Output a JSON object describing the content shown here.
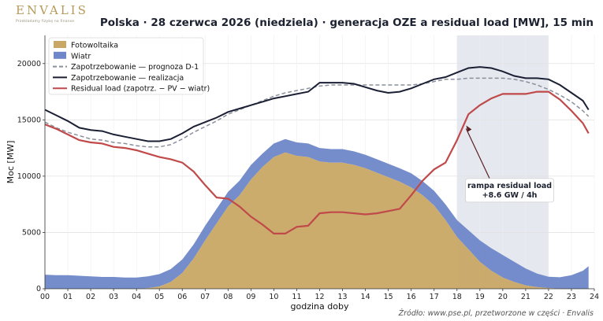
{
  "brand": {
    "name": "ENVALIS",
    "tagline": "Przekładamy fizykę na finanse"
  },
  "title": "Polska · 28 czerwca 2026 (niedziela) · generacja OZE a residual load [MW], 15 min",
  "source": "Źródło: www.pse.pl, przetworzone w części · Envalis",
  "chart_data": {
    "type": "area",
    "xlabel": "godzina doby",
    "ylabel": "Moc [MW]",
    "xlim": [
      0,
      24
    ],
    "ylim": [
      0,
      22500
    ],
    "x_ticks": [
      "00",
      "01",
      "02",
      "03",
      "04",
      "05",
      "06",
      "07",
      "08",
      "09",
      "10",
      "11",
      "12",
      "13",
      "14",
      "15",
      "16",
      "17",
      "18",
      "19",
      "20",
      "21",
      "22",
      "23",
      "24"
    ],
    "y_ticks": [
      0,
      5000,
      10000,
      15000,
      20000
    ],
    "y_tick_labels": [
      "0",
      "5000",
      "10000",
      "15000",
      "20000"
    ],
    "grid": true,
    "legend_position": "top-left",
    "highlight_band": {
      "x_start": 18,
      "x_end": 22
    },
    "colors": {
      "pv": "#c9a865",
      "wind": "#6f87c9",
      "forecast": "#8a8f9c",
      "actual": "#1a1f33",
      "residual": "#c0494a",
      "band": "#e5e8ef"
    },
    "x": [
      0,
      0.5,
      1,
      1.5,
      2,
      2.5,
      3,
      3.5,
      4,
      4.5,
      5,
      5.5,
      6,
      6.5,
      7,
      7.5,
      8,
      8.5,
      9,
      9.5,
      10,
      10.5,
      11,
      11.5,
      12,
      12.5,
      13,
      13.5,
      14,
      14.5,
      15,
      15.5,
      16,
      16.5,
      17,
      17.5,
      18,
      18.5,
      19,
      19.5,
      20,
      20.5,
      21,
      21.5,
      22,
      22.5,
      23,
      23.5,
      23.75
    ],
    "series": [
      {
        "name": "Fotowoltaika",
        "kind": "area",
        "values": [
          0,
          0,
          0,
          0,
          0,
          0,
          0,
          0,
          0,
          50,
          200,
          600,
          1400,
          2700,
          4300,
          5800,
          7300,
          8300,
          9700,
          10800,
          11700,
          12100,
          11800,
          11700,
          11300,
          11200,
          11200,
          11000,
          10700,
          10300,
          9900,
          9500,
          9000,
          8300,
          7400,
          6100,
          4600,
          3500,
          2400,
          1600,
          1000,
          600,
          300,
          150,
          60,
          20,
          0,
          0,
          0
        ]
      },
      {
        "name": "Wiatr",
        "kind": "stacked-area",
        "values": [
          1250,
          1200,
          1200,
          1150,
          1100,
          1050,
          1050,
          1000,
          1000,
          1050,
          1100,
          1150,
          1200,
          1250,
          1300,
          1300,
          1300,
          1300,
          1300,
          1200,
          1200,
          1200,
          1200,
          1200,
          1200,
          1200,
          1200,
          1200,
          1200,
          1200,
          1200,
          1200,
          1250,
          1250,
          1300,
          1400,
          1500,
          1700,
          1900,
          2000,
          2000,
          1800,
          1500,
          1200,
          1000,
          1000,
          1200,
          1600,
          2000
        ]
      },
      {
        "name": "Zapotrzebowanie — prognoza D-1",
        "kind": "dashed-line",
        "values": [
          14800,
          14300,
          13900,
          13600,
          13300,
          13200,
          13000,
          12900,
          12700,
          12600,
          12600,
          12800,
          13300,
          13900,
          14400,
          14900,
          15500,
          15900,
          16300,
          16700,
          17100,
          17400,
          17600,
          17800,
          18000,
          18100,
          18100,
          18100,
          18100,
          18100,
          18100,
          18100,
          18100,
          18200,
          18400,
          18600,
          18600,
          18700,
          18700,
          18700,
          18700,
          18600,
          18400,
          18100,
          17700,
          17200,
          16600,
          15800,
          15300
        ]
      },
      {
        "name": "Zapotrzebowanie — realizacja",
        "kind": "line",
        "values": [
          15900,
          15400,
          14900,
          14300,
          14100,
          14000,
          13700,
          13500,
          13300,
          13100,
          13100,
          13300,
          13800,
          14400,
          14800,
          15200,
          15700,
          16000,
          16300,
          16600,
          16900,
          17100,
          17300,
          17500,
          18300,
          18300,
          18300,
          18200,
          17900,
          17600,
          17400,
          17500,
          17800,
          18200,
          18600,
          18800,
          19200,
          19600,
          19700,
          19600,
          19300,
          18900,
          18700,
          18700,
          18600,
          18100,
          17400,
          16700,
          15900
        ]
      },
      {
        "name": "Residual load (zapotrz. − PV − wiatr)",
        "kind": "line",
        "values": [
          14600,
          14200,
          13700,
          13200,
          13000,
          12900,
          12600,
          12500,
          12300,
          12000,
          11700,
          11500,
          11200,
          10400,
          9200,
          8100,
          8000,
          7300,
          6400,
          5700,
          4900,
          4900,
          5500,
          5600,
          6700,
          6800,
          6800,
          6700,
          6600,
          6700,
          6900,
          7100,
          8300,
          9600,
          10600,
          11200,
          13200,
          15500,
          16300,
          16900,
          17300,
          17300,
          17300,
          17500,
          17500,
          16800,
          15800,
          14700,
          13800
        ]
      }
    ],
    "annotation": {
      "text_line1": "rampa residual load",
      "text_line2": "+8.6 GW / 4h",
      "x": 20.3,
      "y": 9300,
      "arrow_to_x": 18.4,
      "arrow_to_y": 14500
    }
  }
}
